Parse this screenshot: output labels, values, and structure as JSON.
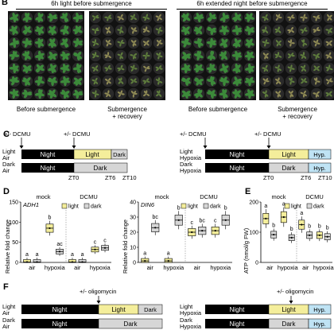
{
  "panel_b": {
    "letter": "B",
    "left_header": "6h light before submergence",
    "right_header": "6h extended night before submergence",
    "captions": [
      "Before submergence",
      "Submergence\n+ recovery",
      "Before submergence",
      "Submergence\n+ recovery"
    ]
  },
  "panel_c": {
    "letter": "C",
    "dcmu": "+/- DCMU",
    "rows_left": [
      {
        "cond": "Light\nAir",
        "segments": [
          "Night",
          "Light",
          "Dark"
        ]
      },
      {
        "cond": "Dark\nAir",
        "segments": [
          "Night",
          "Dark"
        ]
      }
    ],
    "rows_right": [
      {
        "cond": "Light\nHypoxia",
        "segments": [
          "Night",
          "Light",
          "Hyp."
        ]
      },
      {
        "cond": "Dark\nHypoxia",
        "segments": [
          "Night",
          "Dark",
          "Hyp."
        ]
      }
    ],
    "ticks": [
      "ZT0",
      "ZT6",
      "ZT10"
    ]
  },
  "panel_d": {
    "letter": "D",
    "ylabel": "Relative fold change",
    "legend": [
      "light",
      "dark"
    ]
  },
  "panel_e": {
    "letter": "E",
    "ylabel": "ATP (nmol/g FW)",
    "legend": [
      "light",
      "dark"
    ]
  },
  "panel_f": {
    "letter": "F",
    "oligo": "+/- oligomycin",
    "rows_left": [
      {
        "cond": "Light\nAir",
        "segments": [
          "Night",
          "Light",
          "Dark"
        ]
      },
      {
        "cond": "Dark\nAir",
        "segments": [
          "Night",
          "Dark"
        ]
      }
    ],
    "rows_right": [
      {
        "cond": "Light\nHypoxia",
        "segments": [
          "Night",
          "Light",
          "Hyp."
        ]
      },
      {
        "cond": "Dark\nHypoxia",
        "segments": [
          "Night",
          "Dark",
          "Hyp."
        ]
      }
    ]
  },
  "colors": {
    "light": "#f4ee9b",
    "dark": "#d6d6d6",
    "hyp": "#bfe3f4",
    "night": "#000000"
  },
  "chart_data": [
    {
      "type": "box",
      "gene": "ADH1",
      "groups": [
        "mock",
        "DCMU"
      ],
      "categories": [
        "air",
        "hypoxia"
      ],
      "ylim": [
        0,
        150
      ],
      "yticks": [
        0,
        50,
        100,
        150
      ],
      "series": [
        {
          "name": "light",
          "values": [
            1,
            85,
            1,
            32
          ],
          "letters": [
            "a",
            "b",
            "a",
            "c"
          ]
        },
        {
          "name": "dark",
          "values": [
            1,
            27,
            1,
            36
          ],
          "letters": [
            "a",
            "ac",
            "a",
            "c"
          ]
        }
      ]
    },
    {
      "type": "box",
      "gene": "DIN6",
      "groups": [
        "mock",
        "DCMU"
      ],
      "categories": [
        "air",
        "hypoxia"
      ],
      "ylim": [
        0,
        40
      ],
      "yticks": [
        0,
        10,
        20,
        30,
        40
      ],
      "series": [
        {
          "name": "light",
          "values": [
            1,
            1,
            20,
            21
          ],
          "letters": [
            "a",
            "a",
            "c",
            "c"
          ]
        },
        {
          "name": "dark",
          "values": [
            23,
            28,
            21,
            28
          ],
          "letters": [
            "bc",
            "b",
            "bc",
            "b"
          ]
        }
      ]
    },
    {
      "type": "box",
      "groups": [
        "mock",
        "DCMU"
      ],
      "categories": [
        "air",
        "hypoxia"
      ],
      "ylim": [
        0,
        200
      ],
      "yticks": [
        0,
        100,
        200
      ],
      "series": [
        {
          "name": "light",
          "values": [
            145,
            150,
            125,
            90
          ],
          "letters": [
            "a",
            "a",
            "a",
            "b"
          ]
        },
        {
          "name": "dark",
          "values": [
            92,
            82,
            90,
            85
          ],
          "letters": [
            "b",
            "b",
            "b",
            "b"
          ]
        }
      ]
    }
  ]
}
